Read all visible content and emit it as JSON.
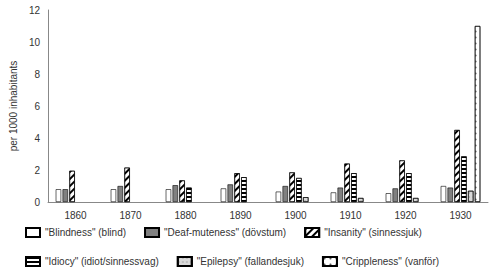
{
  "chart_data": {
    "type": "bar",
    "y_label": "per 1000 inhabitants",
    "categories": [
      "1860",
      "1870",
      "1880",
      "1890",
      "1900",
      "1910",
      "1920",
      "1930"
    ],
    "series": [
      {
        "name": "\"Blindness\" (blind)",
        "color": "#ffffff",
        "values": [
          0.8,
          0.8,
          0.8,
          0.85,
          0.65,
          0.6,
          0.55,
          1.0
        ]
      },
      {
        "name": "\"Deaf-muteness\" (dövstum)",
        "color": "#808080",
        "values": [
          0.8,
          1.0,
          1.05,
          1.1,
          1.0,
          0.9,
          0.85,
          0.9
        ]
      },
      {
        "name": "\"Insanity\" (sinnessjuk)",
        "color": "#ffffff",
        "values": [
          1.95,
          2.15,
          1.35,
          1.8,
          1.85,
          2.4,
          2.6,
          4.5
        ]
      },
      {
        "name": "\"Idiocy\" (idiot/sinnessvag)",
        "color": "#ffffff",
        "values": [
          null,
          null,
          0.9,
          1.55,
          1.5,
          1.8,
          1.8,
          2.85
        ]
      },
      {
        "name": "\"Epilepsy\" (fallandesjuk)",
        "color": "#d9d9d9",
        "values": [
          null,
          null,
          null,
          null,
          0.3,
          0.25,
          0.25,
          0.7
        ]
      },
      {
        "name": "\"Crippleness\" (vanför)",
        "color": "#ffffff",
        "values": [
          null,
          null,
          null,
          null,
          null,
          null,
          null,
          11.0
        ]
      }
    ],
    "ylim": [
      0,
      12
    ],
    "yticks": [
      0,
      2,
      4,
      6,
      8,
      10,
      12
    ],
    "grid": false,
    "legend": "bottom"
  }
}
